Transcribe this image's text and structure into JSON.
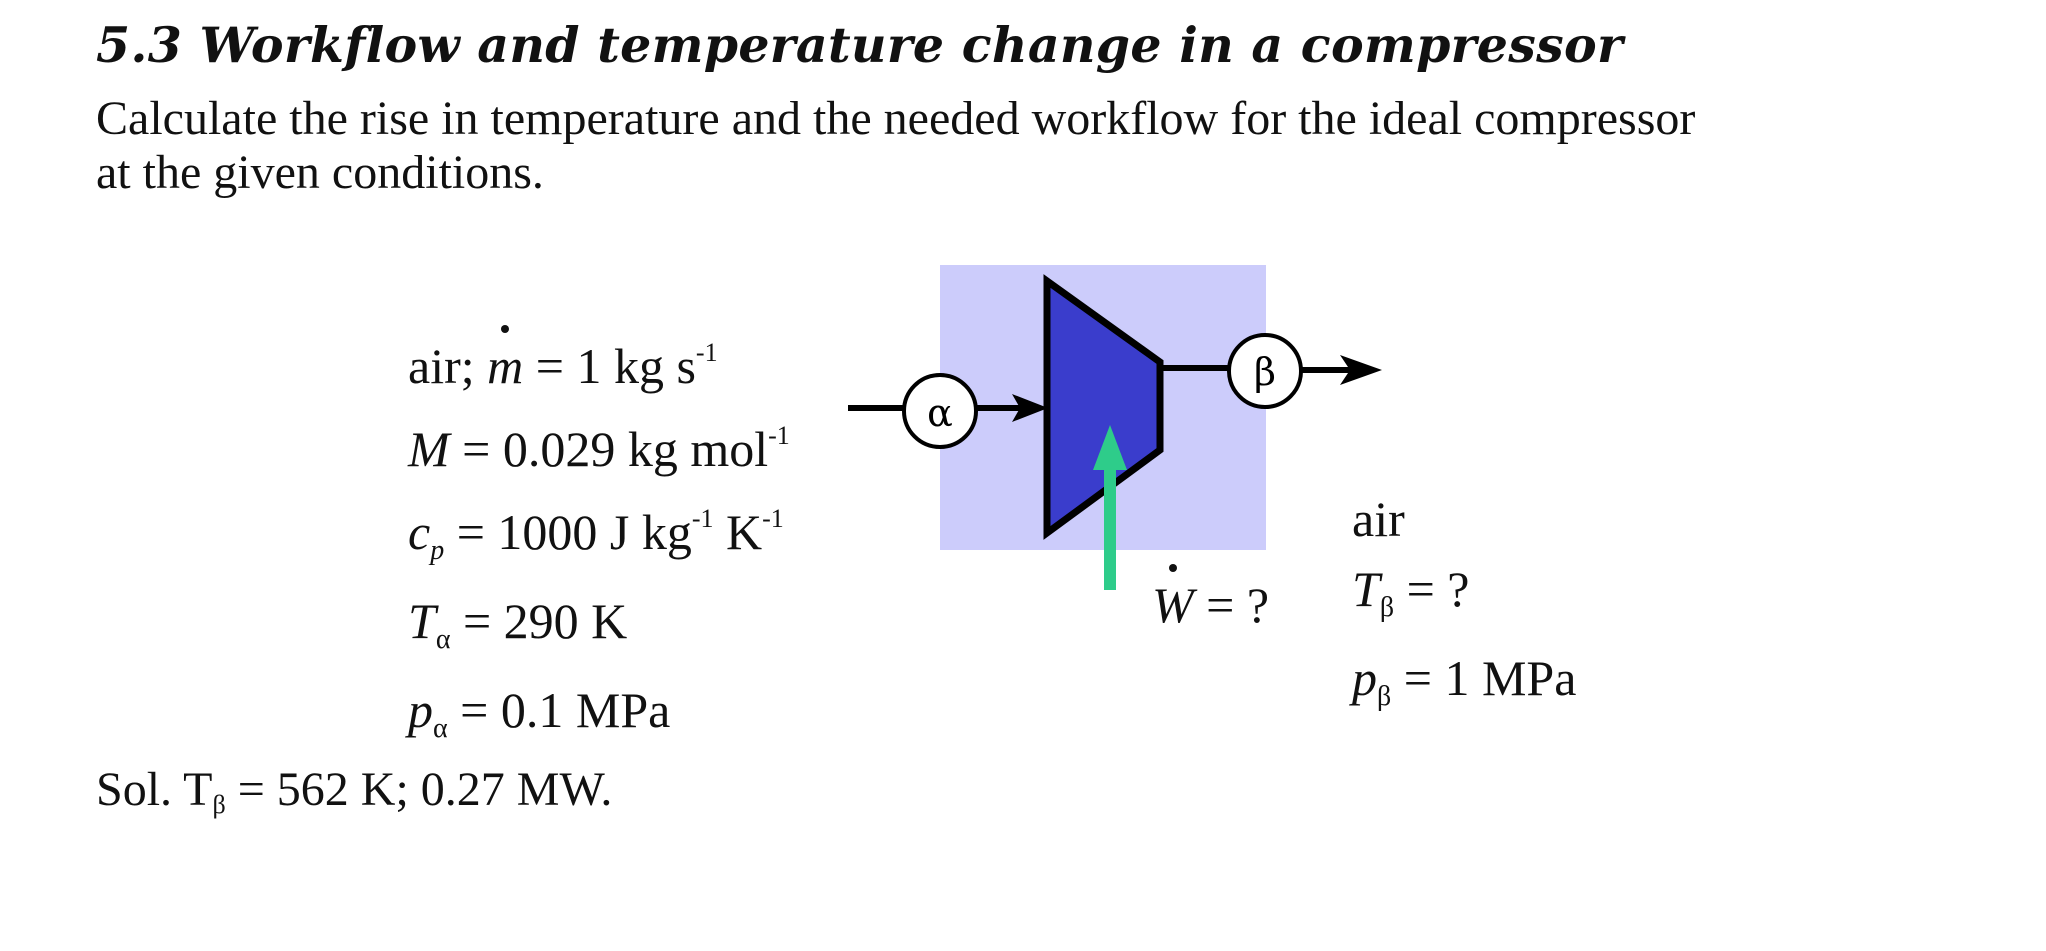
{
  "heading": "5.3 Workflow and temperature change in a compressor",
  "prompt": {
    "line1": "Calculate the rise in temperature and the needed workflow for the ideal compressor",
    "line2": "at the given conditions."
  },
  "inlet": {
    "fluid": "air;",
    "mass_flow_symbol": "m",
    "mass_flow_value": "= 1 kg s",
    "mass_flow_exp": "-1",
    "molar_mass_symbol": "M",
    "molar_mass_value": "= 0.029 kg mol",
    "molar_mass_exp": "-1",
    "cp_symbol": "c",
    "cp_sub": "p",
    "cp_value": "= 1000 J kg",
    "cp_exp1": "-1",
    "cp_unit2": " K",
    "cp_exp2": "-1",
    "temp_symbol": "T",
    "temp_sub": "α",
    "temp_value": "= 290 K",
    "pressure_symbol": "p",
    "pressure_sub": "α",
    "pressure_value": "= 0.1 MPa"
  },
  "work": {
    "symbol": "W",
    "value": "= ?"
  },
  "outlet": {
    "fluid": "air",
    "temp_symbol": "T",
    "temp_sub": "β",
    "temp_value": "= ?",
    "pressure_symbol": "p",
    "pressure_sub": "β",
    "pressure_value": "= 1 MPa"
  },
  "diagram": {
    "inlet_state": "α",
    "outlet_state": "β",
    "box_color": "#ccccfb",
    "compressor_color": "#3a3dcc",
    "work_arrow_color": "#2ecc8a"
  },
  "solution": {
    "prefix": "Sol. T",
    "sub": "β",
    "rest": " = 562 K; 0.27 MW."
  }
}
